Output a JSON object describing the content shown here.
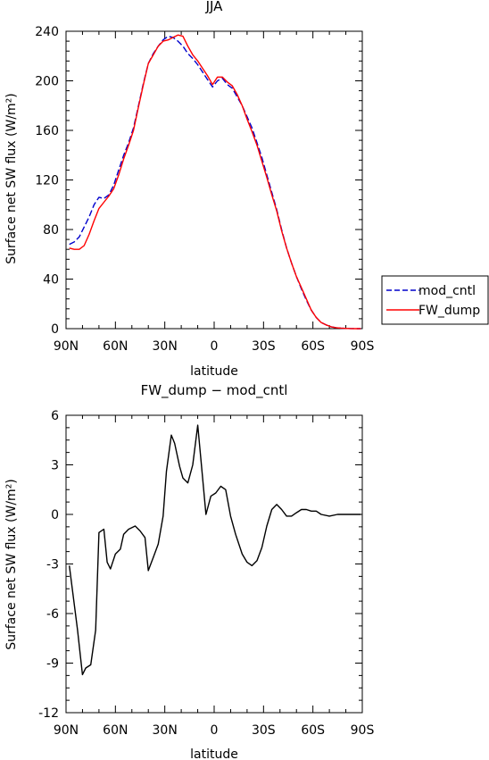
{
  "chart_data": [
    {
      "type": "line",
      "title": "JJA",
      "xlabel": "latitude",
      "ylabel": "Surface net SW flux (W/m²)",
      "xticks": [
        "90N",
        "60N",
        "30N",
        "0",
        "30S",
        "60S",
        "90S"
      ],
      "xtick_values": [
        90,
        60,
        30,
        0,
        -30,
        -60,
        -90
      ],
      "yticks": [
        "0",
        "40",
        "80",
        "120",
        "160",
        "200",
        "240"
      ],
      "ylim": [
        0,
        240
      ],
      "xlim": [
        90,
        -90
      ],
      "legend": "outside-right",
      "series": [
        {
          "name": "mod_cntl",
          "color": "#0000cc",
          "dash": true,
          "x": [
            88,
            85,
            82,
            79,
            76,
            73,
            70,
            67,
            64,
            61,
            58,
            55,
            52,
            49,
            46,
            43,
            40,
            37,
            34,
            31,
            28,
            25,
            22,
            19,
            16,
            13,
            10,
            7,
            4,
            1,
            -2,
            -5,
            -8,
            -11,
            -14,
            -17,
            -20,
            -23,
            -26,
            -29,
            -32,
            -35,
            -38,
            -41,
            -44,
            -47,
            -50,
            -53,
            -56,
            -59,
            -62,
            -65,
            -68,
            -71,
            -74,
            -77,
            -80,
            -83,
            -86,
            -89
          ],
          "values": [
            68,
            70,
            74,
            82,
            90,
            100,
            106,
            105,
            108,
            116,
            128,
            140,
            150,
            162,
            180,
            198,
            214,
            222,
            228,
            233,
            236,
            235,
            232,
            228,
            222,
            218,
            213,
            207,
            201,
            195,
            200,
            202,
            197,
            194,
            187,
            180,
            171,
            162,
            150,
            138,
            124,
            110,
            96,
            80,
            65,
            53,
            42,
            32,
            23,
            15,
            9,
            5,
            3,
            1.5,
            0.8,
            0.4,
            0.2,
            0.1,
            0,
            0
          ]
        },
        {
          "name": "FW_dump",
          "color": "#ff0000",
          "dash": false,
          "x": [
            88,
            85,
            82,
            79,
            76,
            73,
            70,
            67,
            64,
            61,
            58,
            55,
            52,
            49,
            46,
            43,
            40,
            37,
            34,
            31,
            28,
            25,
            22,
            19,
            16,
            13,
            10,
            7,
            4,
            1,
            -2,
            -5,
            -8,
            -11,
            -14,
            -17,
            -20,
            -23,
            -26,
            -29,
            -32,
            -35,
            -38,
            -41,
            -44,
            -47,
            -50,
            -53,
            -56,
            -59,
            -62,
            -65,
            -68,
            -71,
            -74,
            -77,
            -80,
            -83,
            -86,
            -89
          ],
          "values": [
            65,
            64,
            64,
            67,
            76,
            87,
            97,
            102,
            107,
            113,
            124,
            137,
            148,
            160,
            179,
            197,
            214,
            221,
            228,
            232,
            233,
            235,
            237,
            236,
            228,
            221,
            216,
            210,
            204,
            197,
            203,
            203,
            199,
            196,
            189,
            180,
            169,
            159,
            148,
            135,
            122,
            108,
            95,
            79,
            65,
            53,
            42,
            33,
            24,
            15,
            9,
            5,
            3,
            1.5,
            0.8,
            0.4,
            0.2,
            0.1,
            0,
            0
          ]
        }
      ]
    },
    {
      "type": "line",
      "title": "FW_dump − mod_cntl",
      "xlabel": "latitude",
      "ylabel": "Surface net SW flux (W/m²)",
      "xticks": [
        "90N",
        "60N",
        "30N",
        "0",
        "30S",
        "60S",
        "90S"
      ],
      "xtick_values": [
        90,
        60,
        30,
        0,
        -30,
        -60,
        -90
      ],
      "yticks": [
        "-12",
        "-9",
        "-6",
        "-3",
        "0",
        "3",
        "6"
      ],
      "ylim": [
        -12,
        6
      ],
      "xlim": [
        90,
        -90
      ],
      "series": [
        {
          "name": "",
          "color": "#000000",
          "dash": false,
          "x": [
            88,
            83,
            80,
            78,
            75,
            72,
            70,
            67,
            65,
            63,
            60,
            57,
            55,
            52,
            48,
            45,
            42,
            40,
            37,
            34,
            31,
            29,
            26,
            24,
            21,
            19,
            16,
            13,
            10,
            8,
            5,
            2,
            -1,
            -4,
            -7,
            -10,
            -13,
            -17,
            -20,
            -23,
            -26,
            -29,
            -32,
            -35,
            -38,
            -41,
            -44,
            -47,
            -50,
            -53,
            -56,
            -59,
            -62,
            -65,
            -70,
            -75,
            -80,
            -85,
            -89
          ],
          "values": [
            -3.1,
            -7.0,
            -9.7,
            -9.3,
            -9.1,
            -7.0,
            -1.1,
            -0.9,
            -2.9,
            -3.3,
            -2.4,
            -2.1,
            -1.2,
            -0.9,
            -0.7,
            -1.0,
            -1.4,
            -3.4,
            -2.6,
            -1.8,
            -0.1,
            2.6,
            4.8,
            4.3,
            2.9,
            2.2,
            1.9,
            3.0,
            5.4,
            3.3,
            0.0,
            1.1,
            1.3,
            1.7,
            1.5,
            -0.1,
            -1.2,
            -2.4,
            -2.9,
            -3.1,
            -2.8,
            -2.0,
            -0.7,
            0.3,
            0.6,
            0.3,
            -0.1,
            -0.1,
            0.1,
            0.3,
            0.3,
            0.2,
            0.2,
            0.0,
            -0.1,
            0.0,
            0.0,
            0.0,
            0.0
          ]
        }
      ]
    }
  ]
}
